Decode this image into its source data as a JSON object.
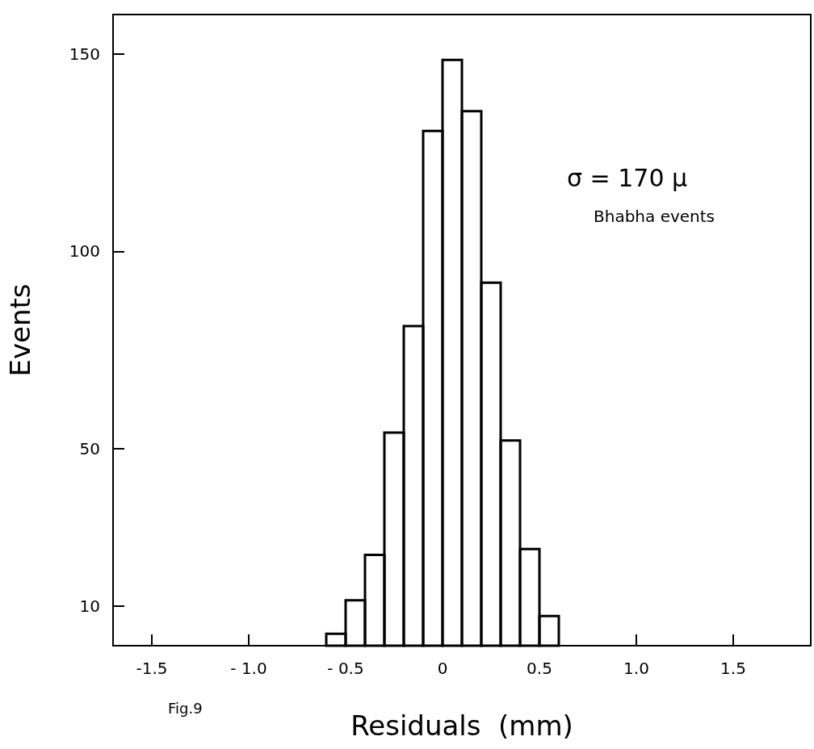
{
  "chart_data": {
    "type": "histogram",
    "xlabel": "Residuals  (mm)",
    "ylabel": "Events",
    "bins": [
      -0.6,
      -0.5,
      -0.4,
      -0.3,
      -0.2,
      -0.1,
      0,
      0.1,
      0.2,
      0.3,
      0.4,
      0.5,
      0.6
    ],
    "values": [
      3,
      11.5,
      23,
      54,
      81,
      130.5,
      148.5,
      135.5,
      92,
      52,
      24.5,
      7.5
    ],
    "color": "#000000",
    "xlim": [
      -1.7,
      1.9
    ],
    "ylim": [
      0,
      160
    ],
    "xticks": [
      -1.5,
      {
        "value": -1,
        "label": "- 1.0"
      },
      {
        "value": -0.5,
        "label": "- 0.5"
      },
      0,
      0.5,
      {
        "value": 1,
        "label": "1.0"
      },
      1.5
    ],
    "yticks": [
      10,
      50,
      100,
      150
    ],
    "grid": false,
    "annotations": [
      "σ = 170 μ",
      "Bhabha events",
      "Fig.9"
    ]
  }
}
